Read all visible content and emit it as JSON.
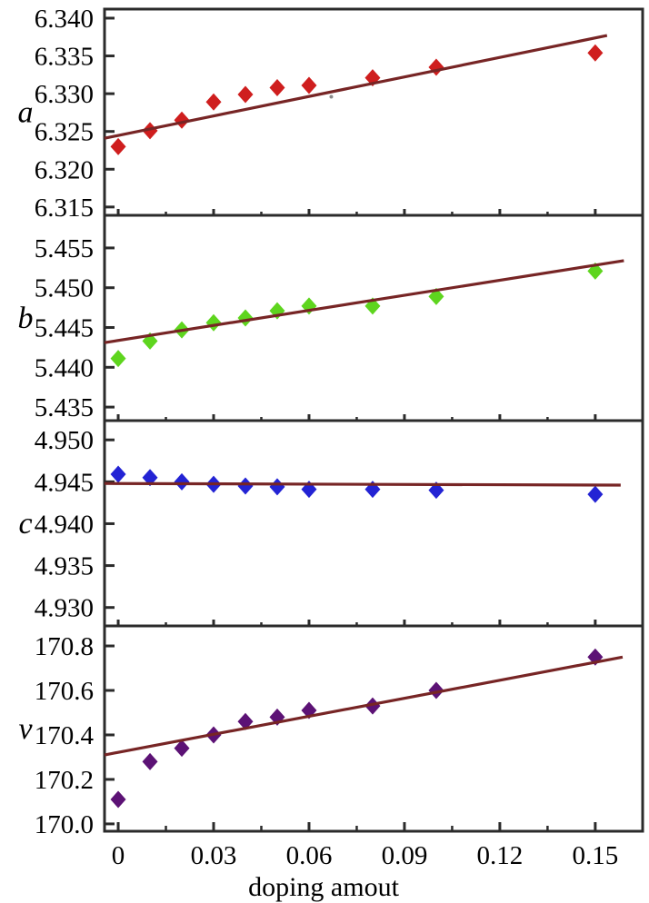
{
  "figure": {
    "xlabel": "doping amout",
    "x_axis": {
      "ticks": [
        0,
        0.03,
        0.06,
        0.09,
        0.12,
        0.15
      ],
      "tick_labels": [
        "0",
        "0.03",
        "0.06",
        "0.09",
        "0.12",
        "0.15"
      ],
      "minor_tick_start": 0.015,
      "minor_tick_step": 0.03,
      "range": [
        -0.0043,
        0.1649
      ]
    },
    "background_color": "#ffffff",
    "frame_color": "#2b2b2b",
    "text_color": "#000000",
    "fit_line_color": "#772525"
  },
  "chart_data": [
    {
      "type": "scatter",
      "panel": "a",
      "ylabel": "a",
      "marker": "diamond",
      "marker_color": "#cf1e1e",
      "x": [
        0,
        0.01,
        0.02,
        0.03,
        0.04,
        0.05,
        0.06,
        0.08,
        0.1,
        0.15
      ],
      "y": [
        6.323,
        6.3251,
        6.3265,
        6.3289,
        6.3299,
        6.3308,
        6.3311,
        6.3321,
        6.3335,
        6.3354
      ],
      "fit_line": {
        "x1": -0.0043,
        "y1": 6.3241,
        "x2": 0.1537,
        "y2": 6.3377
      },
      "yticks": [
        6.315,
        6.32,
        6.325,
        6.33,
        6.335,
        6.34
      ],
      "ytick_labels": [
        "6.315",
        "6.320",
        "6.325",
        "6.330",
        "6.335",
        "6.340"
      ],
      "ylim": [
        6.3139,
        6.3412
      ],
      "artifact_speck": {
        "x": 0.067,
        "y": 6.3296,
        "color": "#8a8a8a"
      }
    },
    {
      "type": "scatter",
      "panel": "b",
      "ylabel": "b",
      "marker": "diamond",
      "marker_color": "#5ed51e",
      "x": [
        0,
        0.01,
        0.02,
        0.03,
        0.04,
        0.05,
        0.06,
        0.08,
        0.1,
        0.15
      ],
      "y": [
        5.4411,
        5.4433,
        5.4447,
        5.4456,
        5.4462,
        5.4471,
        5.4477,
        5.4477,
        5.4489,
        5.4521
      ],
      "fit_line": {
        "x1": -0.0043,
        "y1": 5.4431,
        "x2": 0.159,
        "y2": 5.4534
      },
      "yticks": [
        5.435,
        5.44,
        5.445,
        5.45,
        5.455
      ],
      "ytick_labels": [
        "5.435",
        "5.440",
        "5.445",
        "5.450",
        "5.455"
      ],
      "ylim": [
        5.4333,
        5.4591
      ]
    },
    {
      "type": "scatter",
      "panel": "c",
      "ylabel": "c",
      "marker": "diamond",
      "marker_color": "#2323d4",
      "x": [
        0,
        0.01,
        0.02,
        0.03,
        0.04,
        0.05,
        0.06,
        0.08,
        0.1,
        0.15
      ],
      "y": [
        4.9459,
        4.9455,
        4.945,
        4.9447,
        4.9445,
        4.9444,
        4.9441,
        4.9441,
        4.944,
        4.9435
      ],
      "fit_line": {
        "x1": -0.0043,
        "y1": 4.9448,
        "x2": 0.158,
        "y2": 4.9446
      },
      "yticks": [
        4.93,
        4.935,
        4.94,
        4.945,
        4.95
      ],
      "ytick_labels": [
        "4.930",
        "4.935",
        "4.940",
        "4.945",
        "4.950"
      ],
      "ylim": [
        4.9278,
        4.9523
      ]
    },
    {
      "type": "scatter",
      "panel": "v",
      "ylabel": "v",
      "marker": "diamond",
      "marker_color": "#5c1275",
      "x": [
        0,
        0.01,
        0.02,
        0.03,
        0.04,
        0.05,
        0.06,
        0.08,
        0.1,
        0.15
      ],
      "y": [
        170.11,
        170.28,
        170.34,
        170.4,
        170.46,
        170.48,
        170.51,
        170.53,
        170.6,
        170.75
      ],
      "fit_line": {
        "x1": -0.0043,
        "y1": 170.31,
        "x2": 0.1586,
        "y2": 170.75
      },
      "yticks": [
        170.0,
        170.2,
        170.4,
        170.6,
        170.8
      ],
      "ytick_labels": [
        "170.0",
        "170.2",
        "170.4",
        "170.6",
        "170.8"
      ],
      "ylim": [
        169.967,
        170.89
      ]
    }
  ]
}
